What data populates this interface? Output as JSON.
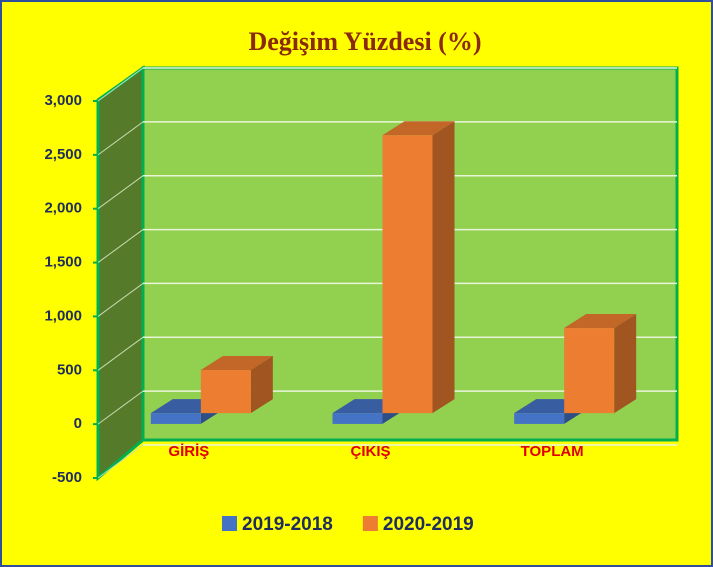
{
  "chart_data": {
    "type": "bar3d",
    "title": "Değişim Yüzdesi (%)",
    "categories": [
      "GİRİŞ",
      "ÇIKIŞ",
      "TOPLAM"
    ],
    "series": [
      {
        "name": "2019-2018",
        "color": "#4472c4",
        "values": [
          -100,
          -100,
          -100
        ]
      },
      {
        "name": "2020-2019",
        "color": "#ed7d31",
        "values": [
          400,
          2580,
          790
        ]
      }
    ],
    "ylim": [
      -500,
      3000
    ],
    "yticks": [
      {
        "value": -500,
        "label": "-500"
      },
      0,
      500,
      {
        "value": 1000,
        "label": "1,000"
      },
      {
        "value": 1500,
        "label": "1,500"
      },
      {
        "value": 2000,
        "label": "2,000"
      },
      {
        "value": 2500,
        "label": "2,500"
      },
      {
        "value": 3000,
        "label": "3,000"
      }
    ],
    "grid": true,
    "legend": "bottom"
  }
}
